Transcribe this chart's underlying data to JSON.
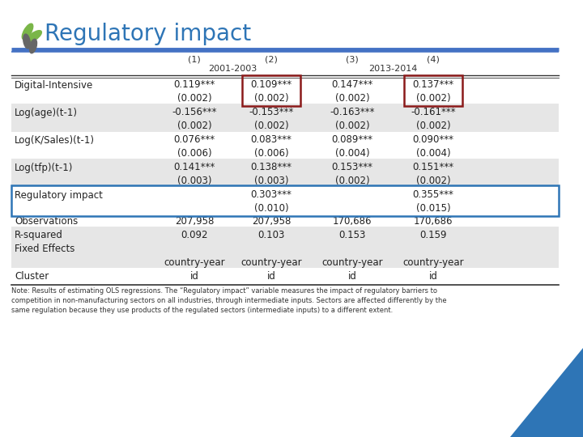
{
  "title": "Regulatory impact",
  "col_headers_1": [
    "(1)",
    "(2)",
    "(3)",
    "(4)"
  ],
  "col_headers_2_left": "2001-2003",
  "col_headers_2_right": "2013-2014",
  "rows": [
    {
      "label": "Digital-Intensive",
      "values": [
        "0.119***",
        "0.109***",
        "0.147***",
        "0.137***"
      ],
      "shade": false
    },
    {
      "label": "",
      "values": [
        "(0.002)",
        "(0.002)",
        "(0.002)",
        "(0.002)"
      ],
      "shade": false
    },
    {
      "label": "Log(age)(t-1)",
      "values": [
        "-0.156***",
        "-0.153***",
        "-0.163***",
        "-0.161***"
      ],
      "shade": true
    },
    {
      "label": "",
      "values": [
        "(0.002)",
        "(0.002)",
        "(0.002)",
        "(0.002)"
      ],
      "shade": true
    },
    {
      "label": "Log(K/Sales)(t-1)",
      "values": [
        "0.076***",
        "0.083***",
        "0.089***",
        "0.090***"
      ],
      "shade": false
    },
    {
      "label": "",
      "values": [
        "(0.006)",
        "(0.006)",
        "(0.004)",
        "(0.004)"
      ],
      "shade": false
    },
    {
      "label": "Log(tfp)(t-1)",
      "values": [
        "0.141***",
        "0.138***",
        "0.153***",
        "0.151***"
      ],
      "shade": true
    },
    {
      "label": "",
      "values": [
        "(0.003)",
        "(0.003)",
        "(0.002)",
        "(0.002)"
      ],
      "shade": true
    },
    {
      "label": "Regulatory impact",
      "values": [
        "",
        "0.303***",
        "",
        "0.355***"
      ],
      "shade": false,
      "highlighted": true
    },
    {
      "label": "",
      "values": [
        "",
        "(0.010)",
        "",
        "(0.015)"
      ],
      "shade": false,
      "highlighted": true
    }
  ],
  "bottom_rows": [
    {
      "label": "Observations",
      "values": [
        "207,958",
        "207,958",
        "170,686",
        "170,686"
      ],
      "shade": false
    },
    {
      "label": "R-squared",
      "values": [
        "0.092",
        "0.103",
        "0.153",
        "0.159"
      ],
      "shade": true
    },
    {
      "label": "Fixed Effects",
      "values": [
        "",
        "",
        "",
        ""
      ],
      "shade": true
    },
    {
      "label": "",
      "values": [
        "country-year",
        "country-year",
        "country-year",
        "country-year"
      ],
      "shade": true
    },
    {
      "label": "Cluster",
      "values": [
        "id",
        "id",
        "id",
        "id"
      ],
      "shade": false
    }
  ],
  "note": "Note: Results of estimating OLS regressions. The “Regulatory impact” variable measures the impact of regulatory barriers to\ncompetition in non-manufacturing sectors on all industries, through intermediate inputs. Sectors are affected differently by the\nsame regulation because they use products of the regulated sectors (intermediate inputs) to a different extent.",
  "bg_color": "#ffffff",
  "shade_color": "#e6e6e6",
  "header_line_color": "#4472c4",
  "red_box_color": "#8B1A1A",
  "blue_box_color": "#2E75B6",
  "title_color": "#2E75B6",
  "green_color": "#7ab648",
  "gray_color": "#666666",
  "tri_color": "#2E75B6"
}
